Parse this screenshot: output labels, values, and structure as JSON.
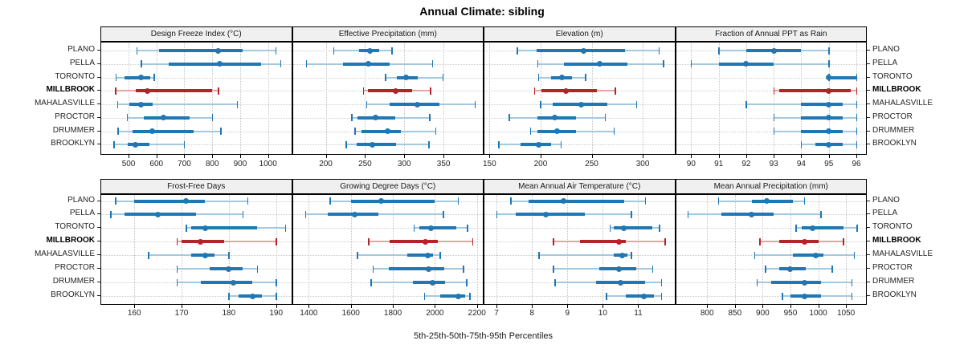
{
  "title": "Annual Climate: sibling",
  "caption": "5th-25th-50th-75th-95th Percentiles",
  "locations": [
    "PLANO",
    "PELLA",
    "TORONTO",
    "MILLBROOK",
    "MAHALASVILLE",
    "PROCTOR",
    "DRUMMER",
    "BROOKLYN"
  ],
  "highlighted_location": "MILLBROOK",
  "percentile_labels": [
    "5th",
    "25th",
    "50th",
    "75th",
    "95th"
  ],
  "colors": {
    "series_dark": "#1f77b4",
    "series_light": "#a3c9e1",
    "highlight_dark": "#b22427",
    "highlight_light": "#e2a6a4",
    "header_bg": "#f0f0f0",
    "panel_border": "#000000",
    "grid": "#c4c4c4",
    "text": "#262626"
  },
  "chart_data": {
    "type": "dot-whisker",
    "layout_hint": "2x4 trellis, shared location rows, per-panel x axes, dotted grid on",
    "panels": [
      {
        "title": "Design Freeze Index (°C)",
        "ticks": [
          500,
          600,
          700,
          800,
          900,
          1000
        ],
        "range": [
          402,
          1083
        ],
        "series": [
          [
            530,
            608,
            820,
            910,
            1028
          ],
          [
            545,
            645,
            827,
            975,
            1045
          ],
          [
            455,
            485,
            545,
            578,
            592
          ],
          [
            453,
            527,
            567,
            798,
            822
          ],
          [
            460,
            503,
            545,
            585,
            890
          ],
          [
            495,
            555,
            624,
            718,
            800
          ],
          [
            462,
            515,
            584,
            732,
            830
          ],
          [
            448,
            498,
            524,
            574,
            699
          ]
        ]
      },
      {
        "title": "Effective Precipitation (mm)",
        "ticks": [
          200,
          250,
          300,
          350
        ],
        "range": [
          158,
          400
        ],
        "series": [
          [
            210,
            242,
            256,
            268,
            284
          ],
          [
            175,
            222,
            254,
            281,
            336
          ],
          [
            276,
            291,
            302,
            317,
            349
          ],
          [
            248,
            254,
            289,
            310,
            333
          ],
          [
            252,
            281,
            317,
            345,
            390
          ],
          [
            233,
            240,
            263,
            288,
            332
          ],
          [
            237,
            245,
            279,
            296,
            340
          ],
          [
            226,
            239,
            259,
            289,
            331
          ]
        ]
      },
      {
        "title": "Elevation (m)",
        "ticks": [
          150,
          200,
          250,
          300
        ],
        "range": [
          145,
          331
        ],
        "series": [
          [
            177,
            196,
            242,
            283,
            316
          ],
          [
            197,
            223,
            258,
            285,
            320
          ],
          [
            198,
            210,
            221,
            231,
            244
          ],
          [
            194,
            201,
            225,
            255,
            273
          ],
          [
            200,
            212,
            240,
            265,
            294
          ],
          [
            169,
            197,
            214,
            235,
            263
          ],
          [
            190,
            197,
            216,
            235,
            272
          ],
          [
            159,
            180,
            198,
            210,
            220
          ]
        ]
      },
      {
        "title": "Fraction of Annual PPT as Rain",
        "ticks": [
          90,
          91,
          92,
          93,
          94,
          95,
          96
        ],
        "range": [
          89.45,
          96.35
        ],
        "series": [
          [
            91,
            92,
            93,
            94,
            95
          ],
          [
            90,
            91,
            92,
            93,
            95
          ],
          [
            95,
            95,
            95,
            96,
            96
          ],
          [
            93,
            93.2,
            95,
            95.8,
            96
          ],
          [
            92,
            94,
            95,
            95.5,
            96
          ],
          [
            93,
            94,
            95,
            95.5,
            96
          ],
          [
            93,
            94,
            95,
            95.5,
            96
          ],
          [
            94,
            94.5,
            95,
            95.5,
            96
          ]
        ]
      },
      {
        "title": "Frost-Free Days",
        "ticks": [
          160,
          170,
          180,
          190
        ],
        "range": [
          153,
          193.2
        ],
        "series": [
          [
            156,
            160,
            171,
            175,
            184
          ],
          [
            155,
            158,
            165,
            173,
            183
          ],
          [
            171,
            172,
            175,
            186,
            192
          ],
          [
            169,
            170,
            174,
            179,
            190
          ],
          [
            163,
            172,
            175,
            177,
            180
          ],
          [
            169,
            176,
            180,
            183,
            186
          ],
          [
            169,
            174,
            181,
            185,
            190
          ],
          [
            180,
            182,
            185,
            187,
            190
          ]
        ]
      },
      {
        "title": "Growing Degree Days (°C)",
        "ticks": [
          1400,
          1600,
          1800,
          2000,
          2200
        ],
        "range": [
          1324,
          2228
        ],
        "series": [
          [
            1500,
            1600,
            1745,
            2000,
            2110
          ],
          [
            1385,
            1490,
            1620,
            1730,
            2040
          ],
          [
            1900,
            1925,
            1980,
            2100,
            2155
          ],
          [
            1685,
            1785,
            1955,
            2015,
            2180
          ],
          [
            1630,
            1870,
            1965,
            1990,
            2025
          ],
          [
            1705,
            1780,
            1970,
            2045,
            2135
          ],
          [
            1695,
            1895,
            1990,
            2050,
            2150
          ],
          [
            1950,
            2025,
            2110,
            2145,
            2165
          ]
        ]
      },
      {
        "title": "Mean Annual Air Temperature (°C)",
        "ticks": [
          7,
          8,
          9,
          10,
          11
        ],
        "range": [
          6.66,
          12.02
        ],
        "series": [
          [
            7.4,
            7.9,
            8.9,
            10.6,
            11.2
          ],
          [
            7.0,
            7.55,
            8.4,
            9.5,
            10.8
          ],
          [
            10.2,
            10.3,
            10.6,
            11.4,
            11.6
          ],
          [
            8.6,
            9.35,
            10.45,
            10.65,
            11.75
          ],
          [
            8.2,
            10.3,
            10.55,
            10.7,
            10.8
          ],
          [
            8.6,
            9.9,
            10.45,
            10.95,
            11.4
          ],
          [
            8.65,
            9.8,
            10.5,
            11.2,
            11.65
          ],
          [
            10.1,
            10.65,
            11.15,
            11.45,
            11.65
          ]
        ]
      },
      {
        "title": "Mean Annual Precipitation (mm)",
        "ticks": [
          800,
          850,
          900,
          950,
          1000,
          1050
        ],
        "range": [
          744,
          1086
        ],
        "series": [
          [
            820,
            880,
            908,
            955,
            975
          ],
          [
            765,
            825,
            880,
            920,
            1005
          ],
          [
            960,
            970,
            990,
            1045,
            1070
          ],
          [
            895,
            930,
            975,
            1000,
            1045
          ],
          [
            885,
            955,
            995,
            1010,
            1065
          ],
          [
            905,
            930,
            950,
            978,
            1025
          ],
          [
            890,
            915,
            975,
            1005,
            1060
          ],
          [
            935,
            950,
            975,
            1005,
            1060
          ]
        ]
      }
    ]
  }
}
